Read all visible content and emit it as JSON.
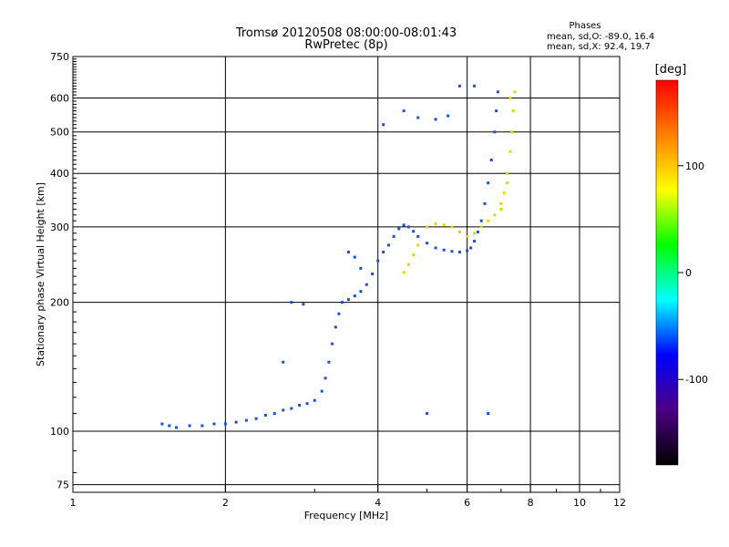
{
  "chart_data": {
    "type": "scatter",
    "title": "Tromsø 20120508 08:00:00-08:01:43",
    "subtitle": "RwPretec (8p)",
    "xlabel": "Frequency [MHz]",
    "ylabel": "Stationary phase Virtual Height [km]",
    "x_scale": "log",
    "y_scale": "log",
    "xlim": [
      1,
      12
    ],
    "ylim": [
      72,
      750
    ],
    "x_ticks": [
      1,
      2,
      4,
      6,
      8,
      10,
      12
    ],
    "y_ticks": [
      75,
      100,
      200,
      300,
      400,
      500,
      600,
      750
    ],
    "grid": true,
    "phase_stats": {
      "title": "Phases",
      "line1": "mean, sd,O: -89.0, 16.4",
      "line2": "mean, sd,X:  92.4, 19.7"
    },
    "colorbar": {
      "label": "[deg]",
      "range": [
        -180,
        180
      ],
      "ticks": [
        100,
        0,
        -100
      ],
      "colors": [
        "#000000",
        "#4b0082",
        "#0000ff",
        "#00ffff",
        "#00ff00",
        "#ffff00",
        "#ff8000",
        "#ff0000"
      ]
    },
    "series": [
      {
        "mode": "O",
        "phase_deg": -89.0,
        "color": "#1a4fe0",
        "points": [
          [
            1.5,
            104
          ],
          [
            1.55,
            103
          ],
          [
            1.6,
            102
          ],
          [
            1.7,
            103
          ],
          [
            1.8,
            103
          ],
          [
            1.9,
            104
          ],
          [
            2.0,
            104
          ],
          [
            2.1,
            105
          ],
          [
            2.2,
            106
          ],
          [
            2.3,
            107
          ],
          [
            2.4,
            109
          ],
          [
            2.5,
            110
          ],
          [
            2.6,
            112
          ],
          [
            2.7,
            113
          ],
          [
            2.8,
            115
          ],
          [
            2.9,
            116
          ],
          [
            3.0,
            118
          ],
          [
            3.1,
            124
          ],
          [
            3.15,
            133
          ],
          [
            3.2,
            145
          ],
          [
            3.25,
            160
          ],
          [
            3.3,
            175
          ],
          [
            3.35,
            188
          ],
          [
            3.4,
            200
          ],
          [
            3.5,
            203
          ],
          [
            3.6,
            207
          ],
          [
            3.7,
            212
          ],
          [
            3.8,
            220
          ],
          [
            3.9,
            233
          ],
          [
            4.0,
            250
          ],
          [
            4.1,
            262
          ],
          [
            4.2,
            272
          ],
          [
            4.3,
            285
          ],
          [
            4.4,
            297
          ],
          [
            4.5,
            303
          ],
          [
            4.6,
            300
          ],
          [
            4.7,
            293
          ],
          [
            4.8,
            285
          ],
          [
            5.0,
            275
          ],
          [
            5.2,
            268
          ],
          [
            5.4,
            265
          ],
          [
            5.6,
            263
          ],
          [
            5.8,
            262
          ],
          [
            6.0,
            264
          ],
          [
            6.1,
            268
          ],
          [
            6.2,
            278
          ],
          [
            6.3,
            292
          ],
          [
            6.4,
            310
          ],
          [
            6.5,
            340
          ],
          [
            6.6,
            380
          ],
          [
            6.7,
            430
          ],
          [
            6.8,
            500
          ],
          [
            6.85,
            560
          ],
          [
            6.9,
            620
          ],
          [
            2.7,
            200
          ],
          [
            2.85,
            198
          ],
          [
            3.5,
            262
          ],
          [
            3.6,
            255
          ],
          [
            3.7,
            240
          ],
          [
            4.5,
            560
          ],
          [
            4.8,
            540
          ],
          [
            5.2,
            535
          ],
          [
            5.5,
            545
          ],
          [
            5.8,
            640
          ],
          [
            6.2,
            640
          ],
          [
            4.1,
            520
          ],
          [
            5.0,
            110
          ],
          [
            6.6,
            110
          ],
          [
            2.6,
            145
          ]
        ]
      },
      {
        "mode": "X",
        "phase_deg": 92.4,
        "color": "#e8d400",
        "points": [
          [
            4.5,
            235
          ],
          [
            4.6,
            245
          ],
          [
            4.7,
            258
          ],
          [
            4.8,
            272
          ],
          [
            5.0,
            300
          ],
          [
            5.2,
            305
          ],
          [
            5.4,
            303
          ],
          [
            5.6,
            300
          ],
          [
            5.8,
            292
          ],
          [
            6.0,
            285
          ],
          [
            6.2,
            290
          ],
          [
            6.4,
            300
          ],
          [
            6.6,
            310
          ],
          [
            6.8,
            320
          ],
          [
            7.0,
            340
          ],
          [
            7.1,
            360
          ],
          [
            7.2,
            400
          ],
          [
            7.3,
            450
          ],
          [
            7.35,
            500
          ],
          [
            7.4,
            560
          ],
          [
            7.45,
            620
          ],
          [
            7.3,
            600
          ],
          [
            7.2,
            380
          ],
          [
            7.0,
            330
          ]
        ]
      }
    ]
  }
}
